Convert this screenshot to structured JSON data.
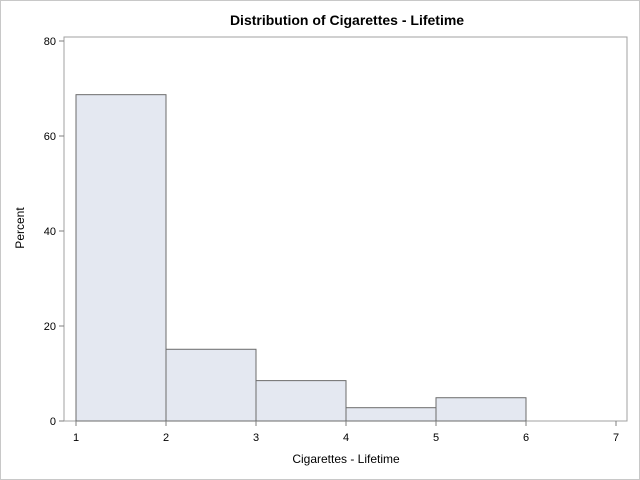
{
  "chart_data": {
    "type": "bar",
    "title": "Distribution of Cigarettes - Lifetime",
    "xlabel": "Cigarettes - Lifetime",
    "ylabel": "Percent",
    "xlim": [
      1,
      7
    ],
    "ylim": [
      0,
      80
    ],
    "x_ticks": [
      1,
      2,
      3,
      4,
      5,
      6,
      7
    ],
    "y_ticks": [
      0,
      20,
      40,
      60,
      80
    ],
    "bins": [
      {
        "start": 1,
        "end": 2,
        "value": 68.7
      },
      {
        "start": 2,
        "end": 3,
        "value": 15.1
      },
      {
        "start": 3,
        "end": 4,
        "value": 8.5
      },
      {
        "start": 4,
        "end": 5,
        "value": 2.8
      },
      {
        "start": 5,
        "end": 6,
        "value": 4.9
      }
    ],
    "grid": false,
    "colors": {
      "bar_fill": "#e4e8f1",
      "bar_stroke": "#6b6b6b",
      "axis": "#7f7f7f",
      "frame": "#a0a0a0"
    }
  }
}
